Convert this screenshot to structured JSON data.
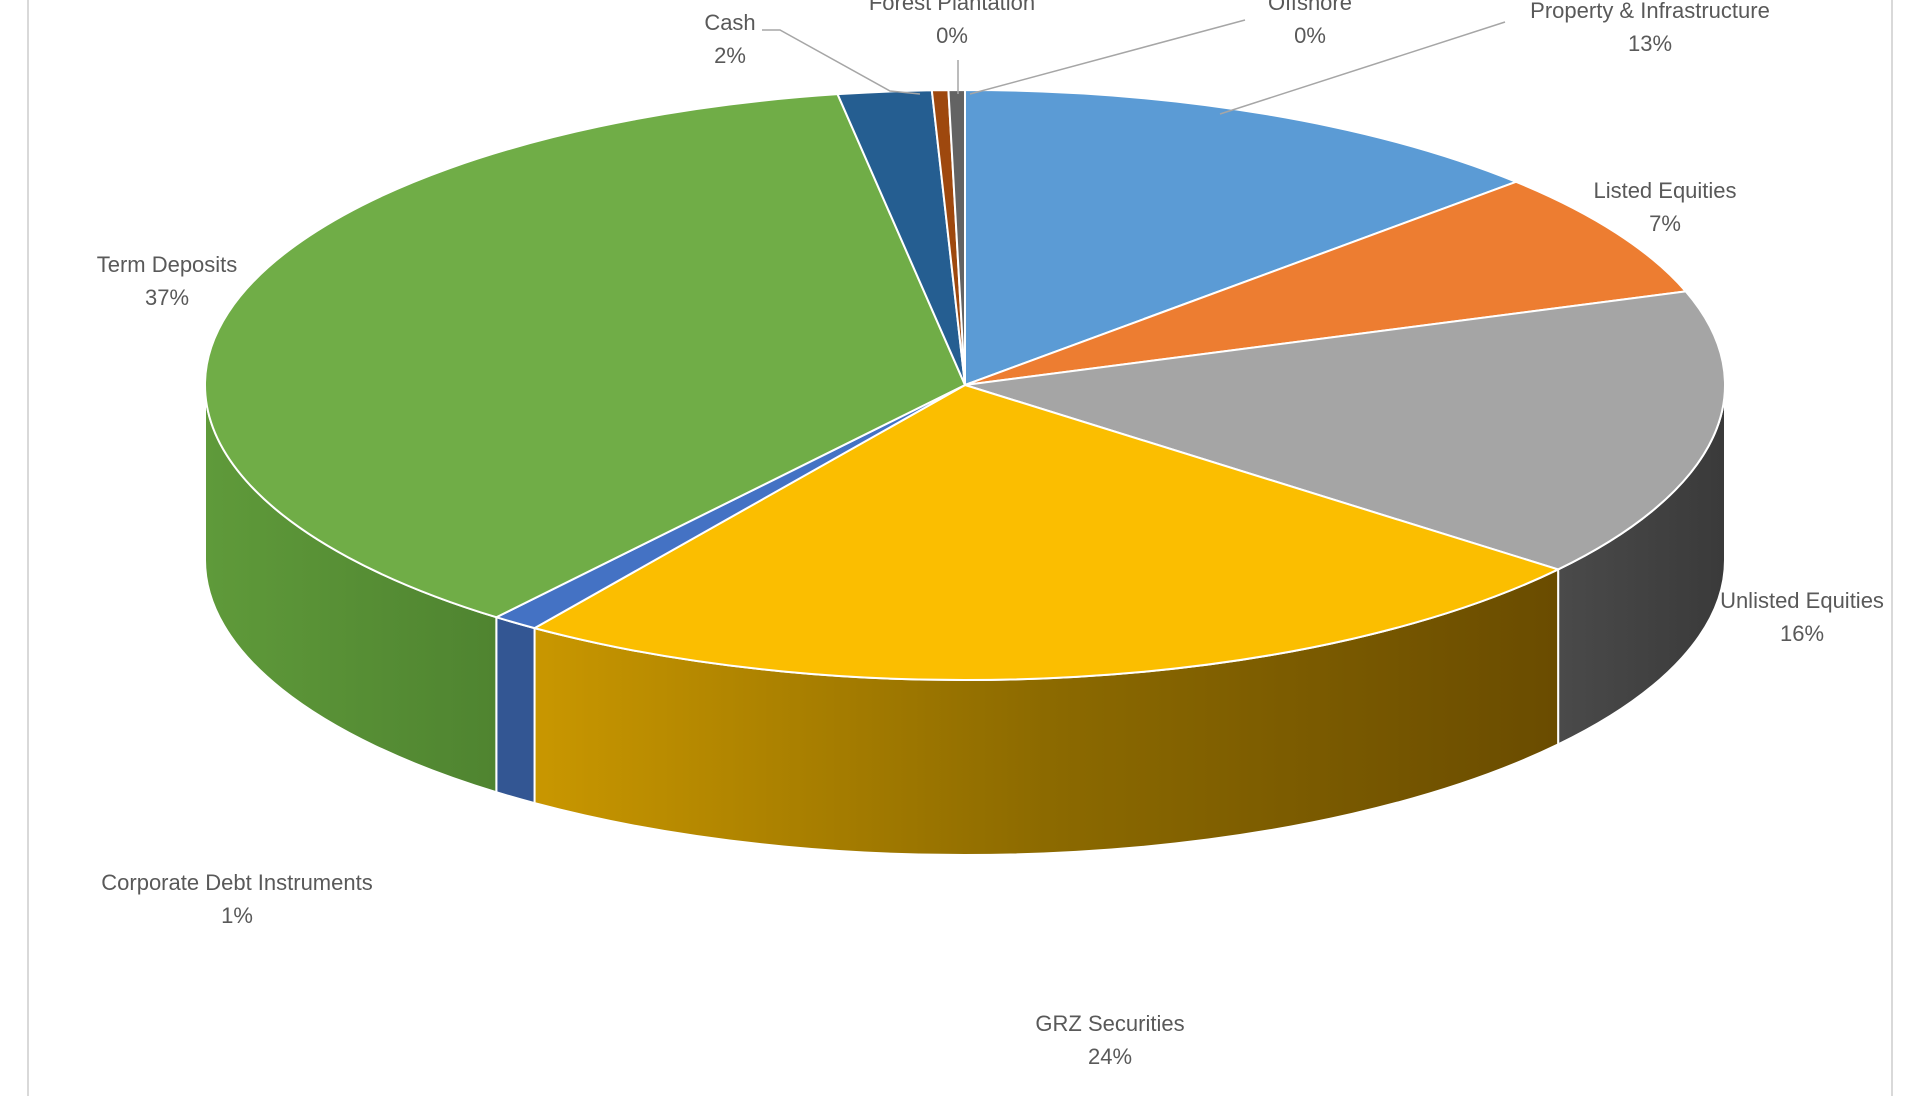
{
  "chart_data": {
    "type": "pie",
    "variant": "3d",
    "title": "",
    "start_angle_deg": 0,
    "direction": "clockwise",
    "slices": [
      {
        "label": "Property & Infrastructure",
        "value": 13,
        "value_label": "13%",
        "color": "#5b9bd5"
      },
      {
        "label": "Listed Equities",
        "value": 7,
        "value_label": "7%",
        "color": "#ed7d31"
      },
      {
        "label": "Unlisted Equities",
        "value": 16,
        "value_label": "16%",
        "color": "#a5a5a5"
      },
      {
        "label": "GRZ Securities",
        "value": 24,
        "value_label": "24%",
        "color": "#fbbe00"
      },
      {
        "label": "Corporate Debt Instruments",
        "value": 1,
        "value_label": "1%",
        "color": "#4472c4"
      },
      {
        "label": "Term Deposits",
        "value": 37,
        "value_label": "37%",
        "color": "#70ad47"
      },
      {
        "label": "Cash",
        "value": 2,
        "value_label": "2%",
        "color": "#255e91"
      },
      {
        "label": "Forest Plantation",
        "value": 0,
        "value_label": "0%",
        "color": "#9e480e"
      },
      {
        "label": "Offshore",
        "value": 0,
        "value_label": "0%",
        "color": "#636363"
      }
    ]
  }
}
